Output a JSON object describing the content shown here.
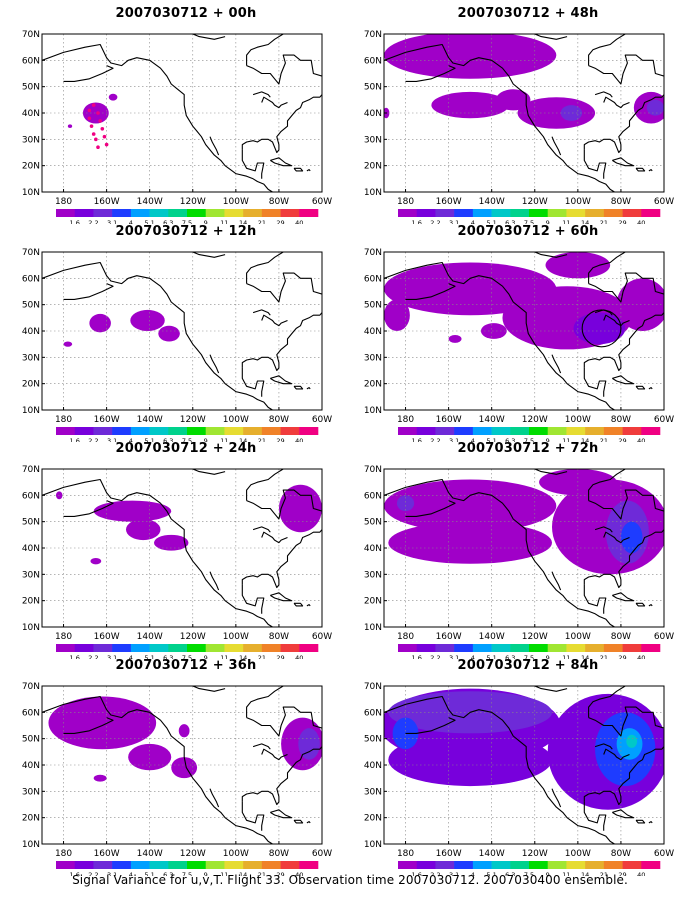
{
  "chart_data": {
    "type": "heatmap",
    "colorbar": {
      "labels": [
        "1.6",
        "2.2",
        "3.1",
        "4",
        "5.1",
        "6.3",
        "7.5",
        "9",
        "11",
        "14",
        "21",
        "29",
        "40"
      ],
      "colors": [
        "#a000c8",
        "#7800dc",
        "#6e2ad8",
        "#1e3cff",
        "#00a0ff",
        "#00c8c8",
        "#00d28c",
        "#00dc00",
        "#a0e632",
        "#e6dc32",
        "#e6af2d",
        "#f08228",
        "#f03c3c",
        "#f00082"
      ]
    },
    "axes": {
      "x_ticks": [
        "180",
        "160W",
        "140W",
        "120W",
        "100W",
        "80W",
        "60W"
      ],
      "y_ticks": [
        "10N",
        "20N",
        "30N",
        "40N",
        "50N",
        "60N",
        "70N"
      ],
      "grid": true,
      "lon_range": [
        -190,
        -60
      ],
      "lat_range": [
        10,
        70
      ]
    },
    "panels": [
      {
        "title": "2007030712 + 00h",
        "blobs": [
          {
            "lon": -165,
            "lat": 40,
            "rx": 6,
            "ry": 4,
            "c": "#a000c8"
          },
          {
            "lon": -157,
            "lat": 46,
            "rx": 2,
            "ry": 1.3,
            "c": "#a000c8"
          },
          {
            "lon": -177,
            "lat": 35,
            "rx": 1,
            "ry": 0.7,
            "c": "#a000c8"
          }
        ],
        "dots": [
          {
            "lon": -166,
            "lat": 43
          },
          {
            "lon": -164,
            "lat": 40
          },
          {
            "lon": -163,
            "lat": 37
          },
          {
            "lon": -162,
            "lat": 34
          },
          {
            "lon": -161,
            "lat": 31
          },
          {
            "lon": -160,
            "lat": 28
          },
          {
            "lon": -168,
            "lat": 41
          },
          {
            "lon": -168,
            "lat": 38
          },
          {
            "lon": -167,
            "lat": 35
          },
          {
            "lon": -166,
            "lat": 32
          },
          {
            "lon": -165,
            "lat": 30
          },
          {
            "lon": -164,
            "lat": 27
          }
        ]
      },
      {
        "title": "2007030712 + 48h",
        "blobs": [
          {
            "lon": -150,
            "lat": 62,
            "rx": 40,
            "ry": 9,
            "c": "#a000c8"
          },
          {
            "lon": -150,
            "lat": 43,
            "rx": 18,
            "ry": 5,
            "c": "#a000c8"
          },
          {
            "lon": -110,
            "lat": 40,
            "rx": 18,
            "ry": 6,
            "c": "#a000c8"
          },
          {
            "lon": -103,
            "lat": 40,
            "rx": 5,
            "ry": 3,
            "c": "#6e2ad8"
          },
          {
            "lon": -66,
            "lat": 42,
            "rx": 8,
            "ry": 6,
            "c": "#a000c8"
          },
          {
            "lon": -64,
            "lat": 42,
            "rx": 4,
            "ry": 3,
            "c": "#6e2ad8"
          },
          {
            "lon": -130,
            "lat": 45,
            "rx": 8,
            "ry": 4,
            "c": "#a000c8"
          },
          {
            "lon": -189,
            "lat": 40,
            "rx": 1.5,
            "ry": 2,
            "c": "#a000c8"
          }
        ]
      },
      {
        "title": "2007030712 + 12h",
        "blobs": [
          {
            "lon": -163,
            "lat": 43,
            "rx": 5,
            "ry": 3.5,
            "c": "#a000c8"
          },
          {
            "lon": -141,
            "lat": 44,
            "rx": 8,
            "ry": 4,
            "c": "#a000c8"
          },
          {
            "lon": -131,
            "lat": 39,
            "rx": 5,
            "ry": 3,
            "c": "#a000c8"
          },
          {
            "lon": -178,
            "lat": 35,
            "rx": 2,
            "ry": 1,
            "c": "#a000c8"
          }
        ]
      },
      {
        "title": "2007030712 + 60h",
        "blobs": [
          {
            "lon": -150,
            "lat": 56,
            "rx": 40,
            "ry": 10,
            "c": "#a000c8"
          },
          {
            "lon": -105,
            "lat": 45,
            "rx": 30,
            "ry": 12,
            "c": "#a000c8"
          },
          {
            "lon": -90,
            "lat": 41,
            "rx": 12,
            "ry": 6,
            "c": "#7800dc"
          },
          {
            "lon": -184,
            "lat": 46,
            "rx": 6,
            "ry": 6,
            "c": "#a000c8"
          },
          {
            "lon": -70,
            "lat": 50,
            "rx": 12,
            "ry": 10,
            "c": "#a000c8"
          },
          {
            "lon": -100,
            "lat": 65,
            "rx": 15,
            "ry": 5,
            "c": "#a000c8"
          },
          {
            "lon": -157,
            "lat": 37,
            "rx": 3,
            "ry": 1.5,
            "c": "#a000c8"
          },
          {
            "lon": -139,
            "lat": 40,
            "rx": 6,
            "ry": 3,
            "c": "#a000c8"
          }
        ],
        "circle": {
          "lon": -89,
          "lat": 41,
          "rx": 9,
          "ry": 7
        }
      },
      {
        "title": "2007030712 + 24h",
        "blobs": [
          {
            "lon": -148,
            "lat": 54,
            "rx": 18,
            "ry": 4,
            "c": "#a000c8"
          },
          {
            "lon": -143,
            "lat": 47,
            "rx": 8,
            "ry": 4,
            "c": "#a000c8"
          },
          {
            "lon": -130,
            "lat": 42,
            "rx": 8,
            "ry": 3,
            "c": "#a000c8"
          },
          {
            "lon": -70,
            "lat": 55,
            "rx": 10,
            "ry": 9,
            "c": "#a000c8"
          },
          {
            "lon": -165,
            "lat": 35,
            "rx": 2.5,
            "ry": 1.2,
            "c": "#a000c8"
          },
          {
            "lon": -182,
            "lat": 60,
            "rx": 1.5,
            "ry": 1.5,
            "c": "#a000c8"
          }
        ]
      },
      {
        "title": "2007030712 + 72h",
        "blobs": [
          {
            "lon": -150,
            "lat": 56,
            "rx": 40,
            "ry": 10,
            "c": "#a000c8"
          },
          {
            "lon": -150,
            "lat": 42,
            "rx": 38,
            "ry": 8,
            "c": "#a000c8"
          },
          {
            "lon": -85,
            "lat": 48,
            "rx": 27,
            "ry": 18,
            "c": "#a000c8"
          },
          {
            "lon": -77,
            "lat": 46,
            "rx": 10,
            "ry": 12,
            "c": "#6e2ad8"
          },
          {
            "lon": -75,
            "lat": 44,
            "rx": 5,
            "ry": 6,
            "c": "#1e3cff"
          },
          {
            "lon": -180,
            "lat": 57,
            "rx": 4,
            "ry": 3,
            "c": "#6e2ad8"
          },
          {
            "lon": -100,
            "lat": 65,
            "rx": 18,
            "ry": 5,
            "c": "#a000c8"
          }
        ]
      },
      {
        "title": "2007030712 + 36h",
        "blobs": [
          {
            "lon": -162,
            "lat": 56,
            "rx": 25,
            "ry": 10,
            "c": "#a000c8"
          },
          {
            "lon": -140,
            "lat": 43,
            "rx": 10,
            "ry": 5,
            "c": "#a000c8"
          },
          {
            "lon": -124,
            "lat": 39,
            "rx": 6,
            "ry": 4,
            "c": "#a000c8"
          },
          {
            "lon": -69,
            "lat": 48,
            "rx": 10,
            "ry": 10,
            "c": "#a000c8"
          },
          {
            "lon": -66,
            "lat": 48,
            "rx": 5,
            "ry": 6,
            "c": "#6e2ad8"
          },
          {
            "lon": -163,
            "lat": 35,
            "rx": 3,
            "ry": 1.3,
            "c": "#a000c8"
          },
          {
            "lon": -124,
            "lat": 53,
            "rx": 2.5,
            "ry": 2.5,
            "c": "#a000c8"
          }
        ]
      },
      {
        "title": "2007030712 + 84h",
        "blobs": [
          {
            "lon": -150,
            "lat": 55,
            "rx": 42,
            "ry": 14,
            "c": "#7800dc"
          },
          {
            "lon": -150,
            "lat": 60,
            "rx": 38,
            "ry": 8,
            "c": "#6e2ad8"
          },
          {
            "lon": -86,
            "lat": 45,
            "rx": 28,
            "ry": 22,
            "c": "#7800dc"
          },
          {
            "lon": -78,
            "lat": 46,
            "rx": 14,
            "ry": 14,
            "c": "#1e3cff"
          },
          {
            "lon": -76,
            "lat": 48,
            "rx": 6,
            "ry": 6,
            "c": "#00a0ff"
          },
          {
            "lon": -75,
            "lat": 49,
            "rx": 2.5,
            "ry": 2.5,
            "c": "#00c8c8"
          },
          {
            "lon": -150,
            "lat": 42,
            "rx": 38,
            "ry": 10,
            "c": "#7800dc"
          },
          {
            "lon": -180,
            "lat": 52,
            "rx": 6,
            "ry": 6,
            "c": "#1e3cff"
          }
        ]
      }
    ]
  },
  "footer_caption": "Signal Variance for u,v,T. Flight 33. Observation time 2007030712. 2007030400 ensemble."
}
